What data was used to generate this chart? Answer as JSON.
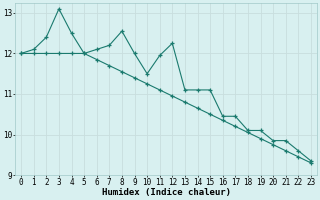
{
  "xlabel": "Humidex (Indice chaleur)",
  "ylabel": "",
  "background_color": "#d8f0f0",
  "grid_color": "#c8dede",
  "line_color": "#1a7a6e",
  "x_values": [
    0,
    1,
    2,
    3,
    4,
    5,
    6,
    7,
    8,
    9,
    10,
    11,
    12,
    13,
    14,
    15,
    16,
    17,
    18,
    19,
    20,
    21,
    22,
    23
  ],
  "line1_y": [
    12.0,
    12.1,
    12.4,
    13.1,
    12.5,
    12.0,
    12.1,
    12.2,
    12.55,
    12.0,
    11.5,
    11.95,
    12.25,
    11.1,
    11.1,
    11.1,
    10.45,
    10.45,
    10.1,
    10.1,
    9.85,
    9.85,
    9.6,
    9.35
  ],
  "line2_y": [
    12.0,
    12.0,
    12.0,
    12.0,
    12.0,
    12.0,
    11.85,
    11.7,
    11.55,
    11.4,
    11.25,
    11.1,
    10.95,
    10.8,
    10.65,
    10.5,
    10.35,
    10.2,
    10.05,
    9.9,
    9.75,
    9.6,
    9.45,
    9.3
  ],
  "xlim": [
    -0.5,
    23.5
  ],
  "ylim": [
    9.0,
    13.25
  ],
  "yticks": [
    9,
    10,
    11,
    12,
    13
  ],
  "xticks": [
    0,
    1,
    2,
    3,
    4,
    5,
    6,
    7,
    8,
    9,
    10,
    11,
    12,
    13,
    14,
    15,
    16,
    17,
    18,
    19,
    20,
    21,
    22,
    23
  ],
  "marker": "+",
  "markersize": 3.5,
  "linewidth": 0.8,
  "xlabel_fontsize": 6.5,
  "tick_fontsize": 5.5
}
